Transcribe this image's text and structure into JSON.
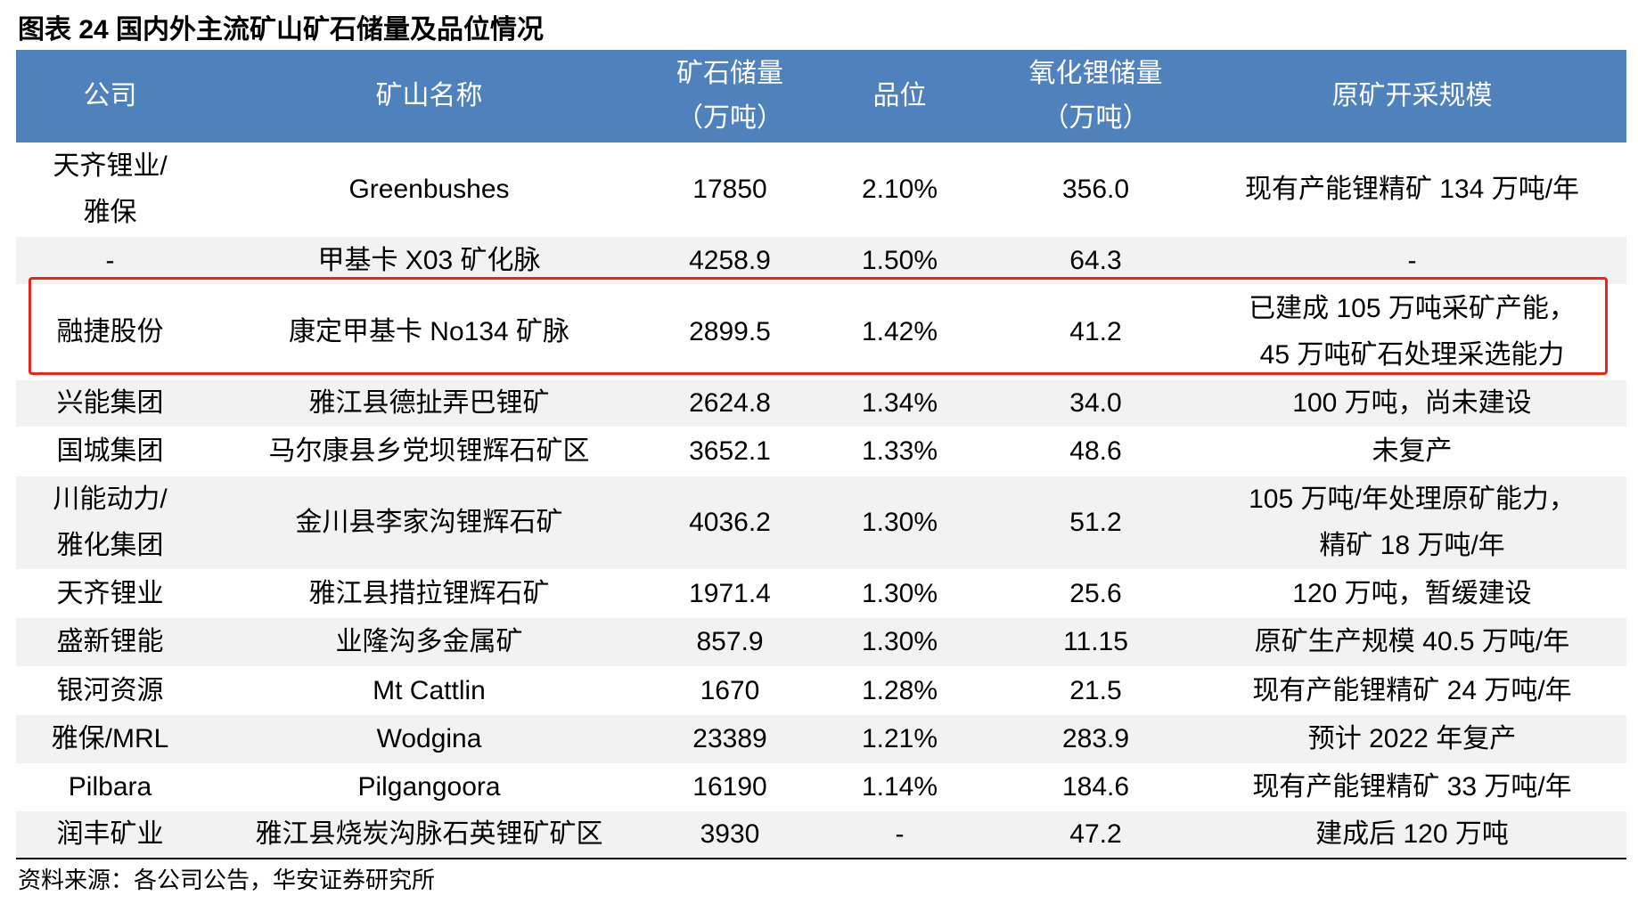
{
  "title": "图表 24 国内外主流矿山矿石储量及品位情况",
  "table": {
    "header": [
      [
        "公司"
      ],
      [
        "矿山名称"
      ],
      [
        "矿石储量",
        "（万吨）"
      ],
      [
        "品位"
      ],
      [
        "氧化锂储量",
        "（万吨）"
      ],
      [
        "原矿开采规模"
      ]
    ],
    "rows": [
      [
        [
          "天齐锂业/",
          "雅保"
        ],
        [
          "Greenbushes"
        ],
        [
          "17850"
        ],
        [
          "2.10%"
        ],
        [
          "356.0"
        ],
        [
          "现有产能锂精矿 134 万吨/年"
        ]
      ],
      [
        [
          "-"
        ],
        [
          "甲基卡 X03 矿化脉"
        ],
        [
          "4258.9"
        ],
        [
          "1.50%"
        ],
        [
          "64.3"
        ],
        [
          "-"
        ]
      ],
      [
        [
          "融捷股份"
        ],
        [
          "康定甲基卡 No134 矿脉"
        ],
        [
          "2899.5"
        ],
        [
          "1.42%"
        ],
        [
          "41.2"
        ],
        [
          "已建成 105 万吨采矿产能，",
          "45 万吨矿石处理采选能力"
        ]
      ],
      [
        [
          "兴能集团"
        ],
        [
          "雅江县德扯弄巴锂矿"
        ],
        [
          "2624.8"
        ],
        [
          "1.34%"
        ],
        [
          "34.0"
        ],
        [
          "100 万吨，尚未建设"
        ]
      ],
      [
        [
          "国城集团"
        ],
        [
          "马尔康县乡党坝锂辉石矿区"
        ],
        [
          "3652.1"
        ],
        [
          "1.33%"
        ],
        [
          "48.6"
        ],
        [
          "未复产"
        ]
      ],
      [
        [
          "川能动力/",
          "雅化集团"
        ],
        [
          "金川县李家沟锂辉石矿"
        ],
        [
          "4036.2"
        ],
        [
          "1.30%"
        ],
        [
          "51.2"
        ],
        [
          "105 万吨/年处理原矿能力，",
          "精矿 18 万吨/年"
        ]
      ],
      [
        [
          "天齐锂业"
        ],
        [
          "雅江县措拉锂辉石矿"
        ],
        [
          "1971.4"
        ],
        [
          "1.30%"
        ],
        [
          "25.6"
        ],
        [
          "120 万吨，暂缓建设"
        ]
      ],
      [
        [
          "盛新锂能"
        ],
        [
          "业隆沟多金属矿"
        ],
        [
          "857.9"
        ],
        [
          "1.30%"
        ],
        [
          "11.15"
        ],
        [
          "原矿生产规模 40.5 万吨/年"
        ]
      ],
      [
        [
          "银河资源"
        ],
        [
          "Mt Cattlin"
        ],
        [
          "1670"
        ],
        [
          "1.28%"
        ],
        [
          "21.5"
        ],
        [
          "现有产能锂精矿 24 万吨/年"
        ]
      ],
      [
        [
          "雅保/MRL"
        ],
        [
          "Wodgina"
        ],
        [
          "23389"
        ],
        [
          "1.21%"
        ],
        [
          "283.9"
        ],
        [
          "预计 2022 年复产"
        ]
      ],
      [
        [
          "Pilbara"
        ],
        [
          "Pilgangoora"
        ],
        [
          "16190"
        ],
        [
          "1.14%"
        ],
        [
          "184.6"
        ],
        [
          "现有产能锂精矿 33 万吨/年"
        ]
      ],
      [
        [
          "润丰矿业"
        ],
        [
          "雅江县烧炭沟脉石英锂矿矿区"
        ],
        [
          "3930"
        ],
        [
          "-"
        ],
        [
          "47.2"
        ],
        [
          "建成后 120 万吨"
        ]
      ]
    ]
  },
  "source": "资料来源：各公司公告，华安证券研究所"
}
